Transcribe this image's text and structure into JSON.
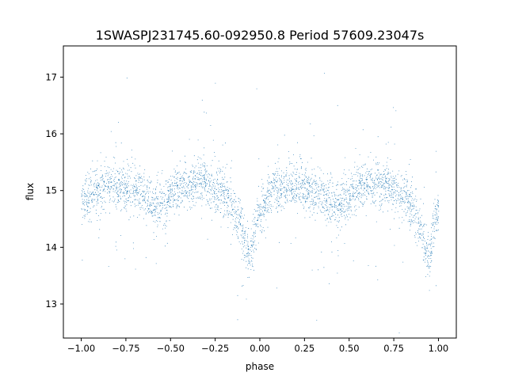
{
  "chart_data": {
    "type": "scatter",
    "title": "1SWASPJ231745.60-092950.8 Period 57609.23047s",
    "xlabel": "phase",
    "ylabel": "flux",
    "xlim": [
      -1.1,
      1.1
    ],
    "ylim": [
      12.4,
      17.55
    ],
    "xticks": [
      -1.0,
      -0.75,
      -0.5,
      -0.25,
      0.0,
      0.25,
      0.5,
      0.75,
      1.0
    ],
    "xtick_labels": [
      "−1.00",
      "−0.75",
      "−0.50",
      "−0.25",
      "0.00",
      "0.25",
      "0.50",
      "0.75",
      "1.00"
    ],
    "yticks": [
      13,
      14,
      15,
      16,
      17
    ],
    "ytick_labels": [
      "13",
      "14",
      "15",
      "16",
      "17"
    ],
    "grid": false,
    "marker_color": "#1f77b4",
    "phased_light_curve": {
      "phase_range": [
        -1.0,
        1.0
      ],
      "points_shown": "dense cloud, roughly 30000 points",
      "primary_minimum": {
        "phase": [
          -0.06,
          0.94
        ],
        "flux": 13.85
      },
      "secondary_minimum": {
        "phase": [
          -0.56,
          0.44
        ],
        "flux": 14.75
      },
      "maxima": [
        {
          "phase": -0.82,
          "flux": 15.1
        },
        {
          "phase": -0.35,
          "flux": 15.15
        },
        {
          "phase": 0.18,
          "flux": 15.1
        },
        {
          "phase": 0.65,
          "flux": 15.15
        }
      ],
      "points": [
        {
          "x": -1.0,
          "y": 14.8
        },
        {
          "x": -0.9,
          "y": 15.0
        },
        {
          "x": -0.82,
          "y": 15.1
        },
        {
          "x": -0.7,
          "y": 15.0
        },
        {
          "x": -0.56,
          "y": 14.75
        },
        {
          "x": -0.45,
          "y": 15.05
        },
        {
          "x": -0.35,
          "y": 15.15
        },
        {
          "x": -0.2,
          "y": 14.95
        },
        {
          "x": -0.12,
          "y": 14.5
        },
        {
          "x": -0.06,
          "y": 13.85
        },
        {
          "x": 0.0,
          "y": 14.7
        },
        {
          "x": 0.08,
          "y": 15.0
        },
        {
          "x": 0.18,
          "y": 15.1
        },
        {
          "x": 0.3,
          "y": 15.0
        },
        {
          "x": 0.44,
          "y": 14.75
        },
        {
          "x": 0.55,
          "y": 15.05
        },
        {
          "x": 0.65,
          "y": 15.15
        },
        {
          "x": 0.8,
          "y": 14.95
        },
        {
          "x": 0.88,
          "y": 14.5
        },
        {
          "x": 0.94,
          "y": 13.85
        },
        {
          "x": 1.0,
          "y": 14.7
        }
      ]
    }
  }
}
